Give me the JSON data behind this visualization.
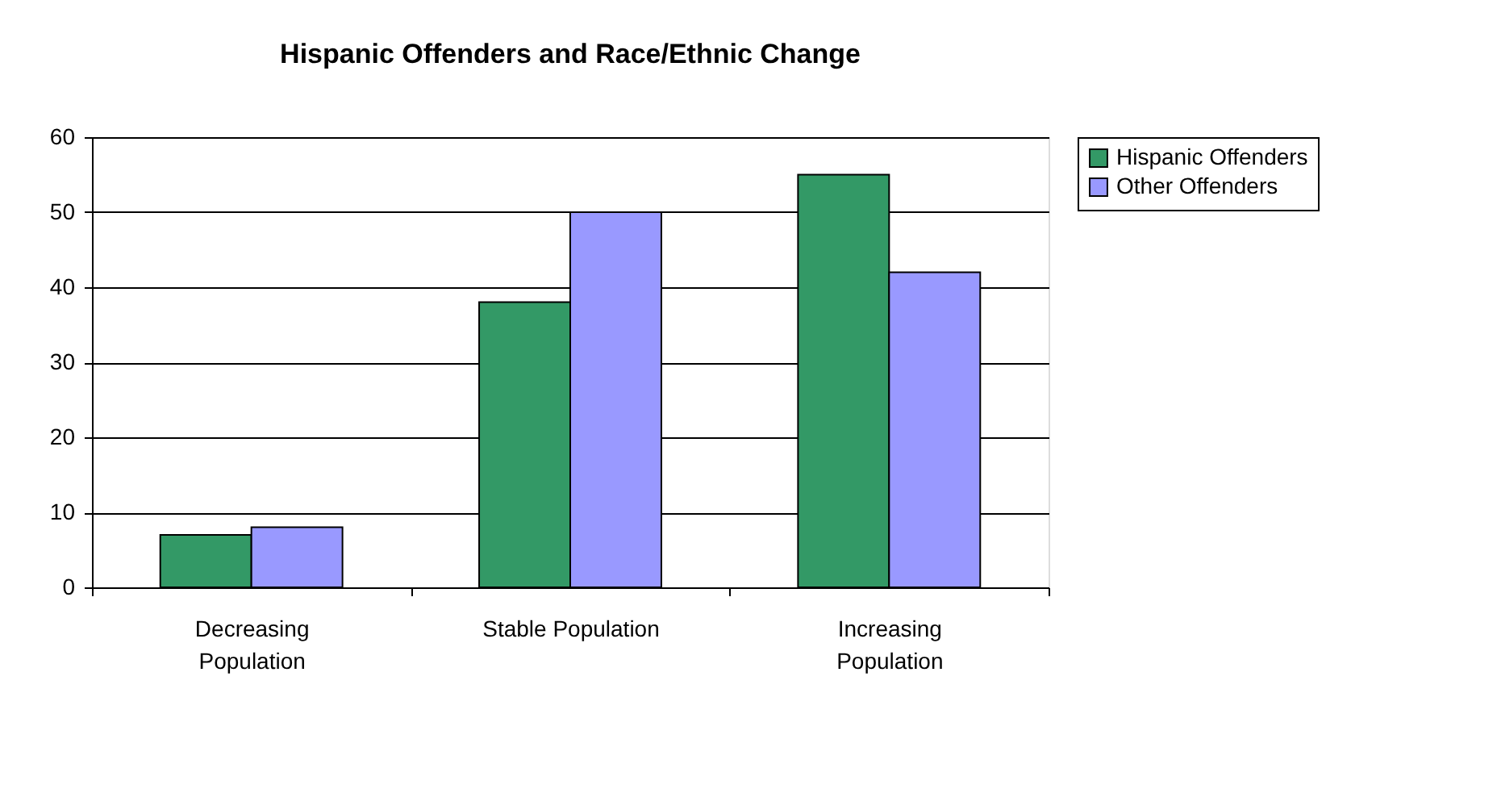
{
  "chart_data": {
    "type": "bar",
    "title": "Hispanic Offenders and Race/Ethnic Change",
    "categories": [
      "Decreasing Population",
      "Stable Population",
      "Increasing Population"
    ],
    "series": [
      {
        "name": "Hispanic Offenders",
        "color": "#339966",
        "values": [
          7,
          38,
          55
        ]
      },
      {
        "name": "Other Offenders",
        "color": "#9999ff",
        "values": [
          8,
          50,
          42
        ]
      }
    ],
    "ylim": [
      0,
      60
    ],
    "yticks": [
      0,
      10,
      20,
      30,
      40,
      50,
      60
    ],
    "grid": "y",
    "legend": "right"
  }
}
